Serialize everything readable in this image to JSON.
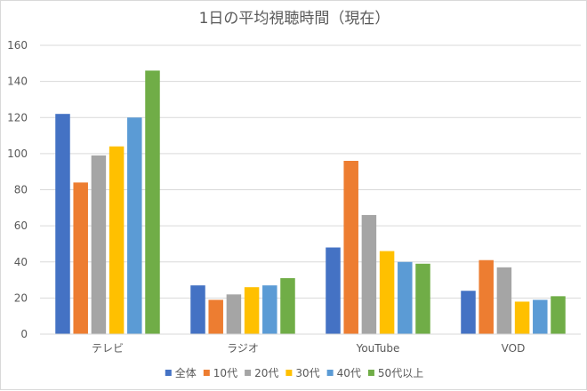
{
  "chart_data": {
    "type": "bar",
    "title": "1日の平均視聴時間（現在）",
    "xlabel": "",
    "ylabel": "",
    "categories": [
      "テレビ",
      "ラジオ",
      "YouTube",
      "VOD"
    ],
    "series": [
      {
        "name": "全体",
        "color": "#4472c4",
        "values": [
          122,
          27,
          48,
          24
        ]
      },
      {
        "name": "10代",
        "color": "#ed7d31",
        "values": [
          84,
          19,
          96,
          41
        ]
      },
      {
        "name": "20代",
        "color": "#a5a5a5",
        "values": [
          99,
          22,
          66,
          37
        ]
      },
      {
        "name": "30代",
        "color": "#ffc000",
        "values": [
          104,
          26,
          46,
          18
        ]
      },
      {
        "name": "40代",
        "color": "#5b9bd5",
        "values": [
          120,
          27,
          40,
          19
        ]
      },
      {
        "name": "50代以上",
        "color": "#70ad47",
        "values": [
          146,
          31,
          39,
          21
        ]
      }
    ],
    "ylim": [
      0,
      160
    ],
    "yticks": [
      0,
      20,
      40,
      60,
      80,
      100,
      120,
      140,
      160
    ],
    "grid": true,
    "gridline_color": "#d9d9d9",
    "legend_position": "bottom"
  }
}
